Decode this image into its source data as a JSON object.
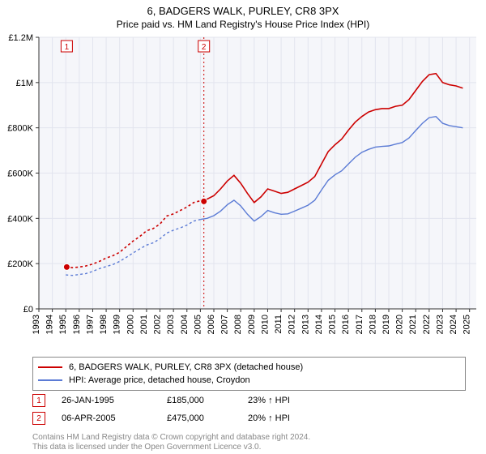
{
  "header": {
    "title": "6, BADGERS WALK, PURLEY, CR8 3PX",
    "subtitle": "Price paid vs. HM Land Registry's House Price Index (HPI)"
  },
  "chart": {
    "type": "line",
    "background_color": "#ffffff",
    "plot_bg_color": "#f5f6fa",
    "grid_color": "#e2e4ee",
    "axis_color": "#333333",
    "tick_fontsize": 11,
    "x_years": [
      1993,
      1994,
      1995,
      1996,
      1997,
      1998,
      1999,
      2000,
      2001,
      2002,
      2003,
      2004,
      2005,
      2006,
      2007,
      2008,
      2009,
      2010,
      2011,
      2012,
      2013,
      2014,
      2015,
      2016,
      2017,
      2018,
      2019,
      2020,
      2021,
      2022,
      2023,
      2024,
      2025
    ],
    "xlim": [
      1993,
      2025.5
    ],
    "ylim": [
      0,
      1200000
    ],
    "yticks": [
      0,
      200000,
      400000,
      600000,
      800000,
      1000000,
      1200000
    ],
    "ytick_labels": [
      "£0",
      "£200K",
      "£400K",
      "£600K",
      "£800K",
      "£1M",
      "£1.2M"
    ],
    "series": [
      {
        "name": "6, BADGERS WALK, PURLEY, CR8 3PX (detached house)",
        "color": "#cc0000",
        "width": 1.6,
        "x": [
          1995,
          1995.5,
          1996,
          1996.5,
          1997,
          1997.5,
          1998,
          1998.5,
          1999,
          1999.5,
          2000,
          2000.5,
          2001,
          2001.5,
          2002,
          2002.5,
          2003,
          2003.5,
          2004,
          2004.5,
          2005,
          2005.5,
          2006,
          2006.5,
          2007,
          2007.5,
          2008,
          2008.5,
          2009,
          2009.5,
          2010,
          2010.5,
          2011,
          2011.5,
          2012,
          2012.5,
          2013,
          2013.5,
          2014,
          2014.5,
          2015,
          2015.5,
          2016,
          2016.5,
          2017,
          2017.5,
          2018,
          2018.5,
          2019,
          2019.5,
          2020,
          2020.5,
          2021,
          2021.5,
          2022,
          2022.5,
          2023,
          2023.5,
          2024,
          2024.5
        ],
        "y": [
          185000,
          182000,
          185000,
          190000,
          198000,
          210000,
          225000,
          235000,
          250000,
          275000,
          300000,
          320000,
          345000,
          355000,
          375000,
          410000,
          420000,
          435000,
          450000,
          470000,
          478000,
          485000,
          500000,
          530000,
          565000,
          590000,
          555000,
          510000,
          470000,
          495000,
          530000,
          520000,
          510000,
          515000,
          530000,
          545000,
          560000,
          585000,
          640000,
          695000,
          725000,
          750000,
          790000,
          825000,
          850000,
          870000,
          880000,
          885000,
          885000,
          895000,
          900000,
          925000,
          965000,
          1005000,
          1035000,
          1040000,
          1000000,
          990000,
          985000,
          975000
        ]
      },
      {
        "name": "HPI: Average price, detached house, Croydon",
        "color": "#5b7bd5",
        "width": 1.4,
        "x": [
          1995,
          1995.5,
          1996,
          1996.5,
          1997,
          1997.5,
          1998,
          1998.5,
          1999,
          1999.5,
          2000,
          2000.5,
          2001,
          2001.5,
          2002,
          2002.5,
          2003,
          2003.5,
          2004,
          2004.5,
          2005,
          2005.5,
          2006,
          2006.5,
          2007,
          2007.5,
          2008,
          2008.5,
          2009,
          2009.5,
          2010,
          2010.5,
          2011,
          2011.5,
          2012,
          2012.5,
          2013,
          2013.5,
          2014,
          2014.5,
          2015,
          2015.5,
          2016,
          2016.5,
          2017,
          2017.5,
          2018,
          2018.5,
          2019,
          2019.5,
          2020,
          2020.5,
          2021,
          2021.5,
          2022,
          2022.5,
          2023,
          2023.5,
          2024,
          2024.5
        ],
        "y": [
          150000,
          148000,
          152000,
          156000,
          166000,
          178000,
          187000,
          196000,
          210000,
          228000,
          247000,
          265000,
          282000,
          292000,
          310000,
          335000,
          348000,
          358000,
          370000,
          388000,
          395000,
          400000,
          412000,
          432000,
          460000,
          480000,
          455000,
          418000,
          388000,
          408000,
          435000,
          425000,
          418000,
          420000,
          432000,
          445000,
          458000,
          480000,
          525000,
          568000,
          592000,
          610000,
          640000,
          670000,
          692000,
          705000,
          715000,
          718000,
          720000,
          728000,
          735000,
          755000,
          788000,
          820000,
          845000,
          850000,
          820000,
          810000,
          805000,
          800000
        ]
      }
    ],
    "price_markers": [
      {
        "label": "1",
        "x": 1995.07,
        "y": 185000,
        "color": "#cc0000",
        "box_color": "#cc0000"
      },
      {
        "label": "2",
        "x": 2005.26,
        "y": 475000,
        "color": "#cc0000",
        "box_color": "#cc0000"
      }
    ],
    "split_line_x": 2005.26,
    "split_line_color": "#cc0000"
  },
  "legend": {
    "items": [
      {
        "color": "#cc0000",
        "label": "6, BADGERS WALK, PURLEY, CR8 3PX (detached house)"
      },
      {
        "color": "#5b7bd5",
        "label": "HPI: Average price, detached house, Croydon"
      }
    ]
  },
  "sales": [
    {
      "marker": "1",
      "date": "26-JAN-1995",
      "price": "£185,000",
      "hpi": "23% ↑ HPI"
    },
    {
      "marker": "2",
      "date": "06-APR-2005",
      "price": "£475,000",
      "hpi": "20% ↑ HPI"
    }
  ],
  "footnote": {
    "line1": "Contains HM Land Registry data © Crown copyright and database right 2024.",
    "line2": "This data is licensed under the Open Government Licence v3.0."
  }
}
